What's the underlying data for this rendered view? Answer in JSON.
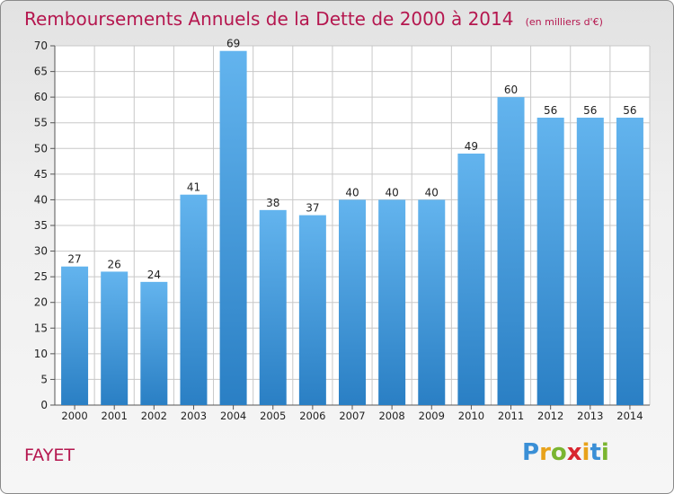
{
  "title": "Remboursements Annuels de la Dette de 2000 à 2014",
  "unit": "(en milliers d'€)",
  "commune": "FAYET",
  "logo": {
    "letters": [
      {
        "ch": "P",
        "color": "#3a8fd6"
      },
      {
        "ch": "r",
        "color": "#e8a21a"
      },
      {
        "ch": "o",
        "color": "#7ab530"
      },
      {
        "ch": "x",
        "color": "#d8262f"
      },
      {
        "ch": "i",
        "color": "#e8a21a"
      },
      {
        "ch": "t",
        "color": "#3a8fd6"
      },
      {
        "ch": "i",
        "color": "#7ab530"
      }
    ]
  },
  "colors": {
    "title": "#b5174f",
    "bar_light": "#63b4ee",
    "bar_dark": "#2a7fc4",
    "grid": "#c8c8c8",
    "axis_text": "#222222"
  },
  "chart_data": {
    "type": "bar",
    "title": "Remboursements Annuels de la Dette de 2000 à 2014",
    "subtitle": "(en milliers d'€)",
    "xlabel": "",
    "ylabel": "",
    "categories": [
      "2000",
      "2001",
      "2002",
      "2003",
      "2004",
      "2005",
      "2006",
      "2007",
      "2008",
      "2009",
      "2010",
      "2011",
      "2012",
      "2013",
      "2014"
    ],
    "values": [
      27,
      26,
      24,
      41,
      69,
      38,
      37,
      40,
      40,
      40,
      49,
      60,
      56,
      56,
      56
    ],
    "ylim": [
      0,
      70
    ],
    "yticks": [
      0,
      5,
      10,
      15,
      20,
      25,
      30,
      35,
      40,
      45,
      50,
      55,
      60,
      65,
      70
    ],
    "grid": true,
    "legend": "none",
    "data_labels": true
  }
}
